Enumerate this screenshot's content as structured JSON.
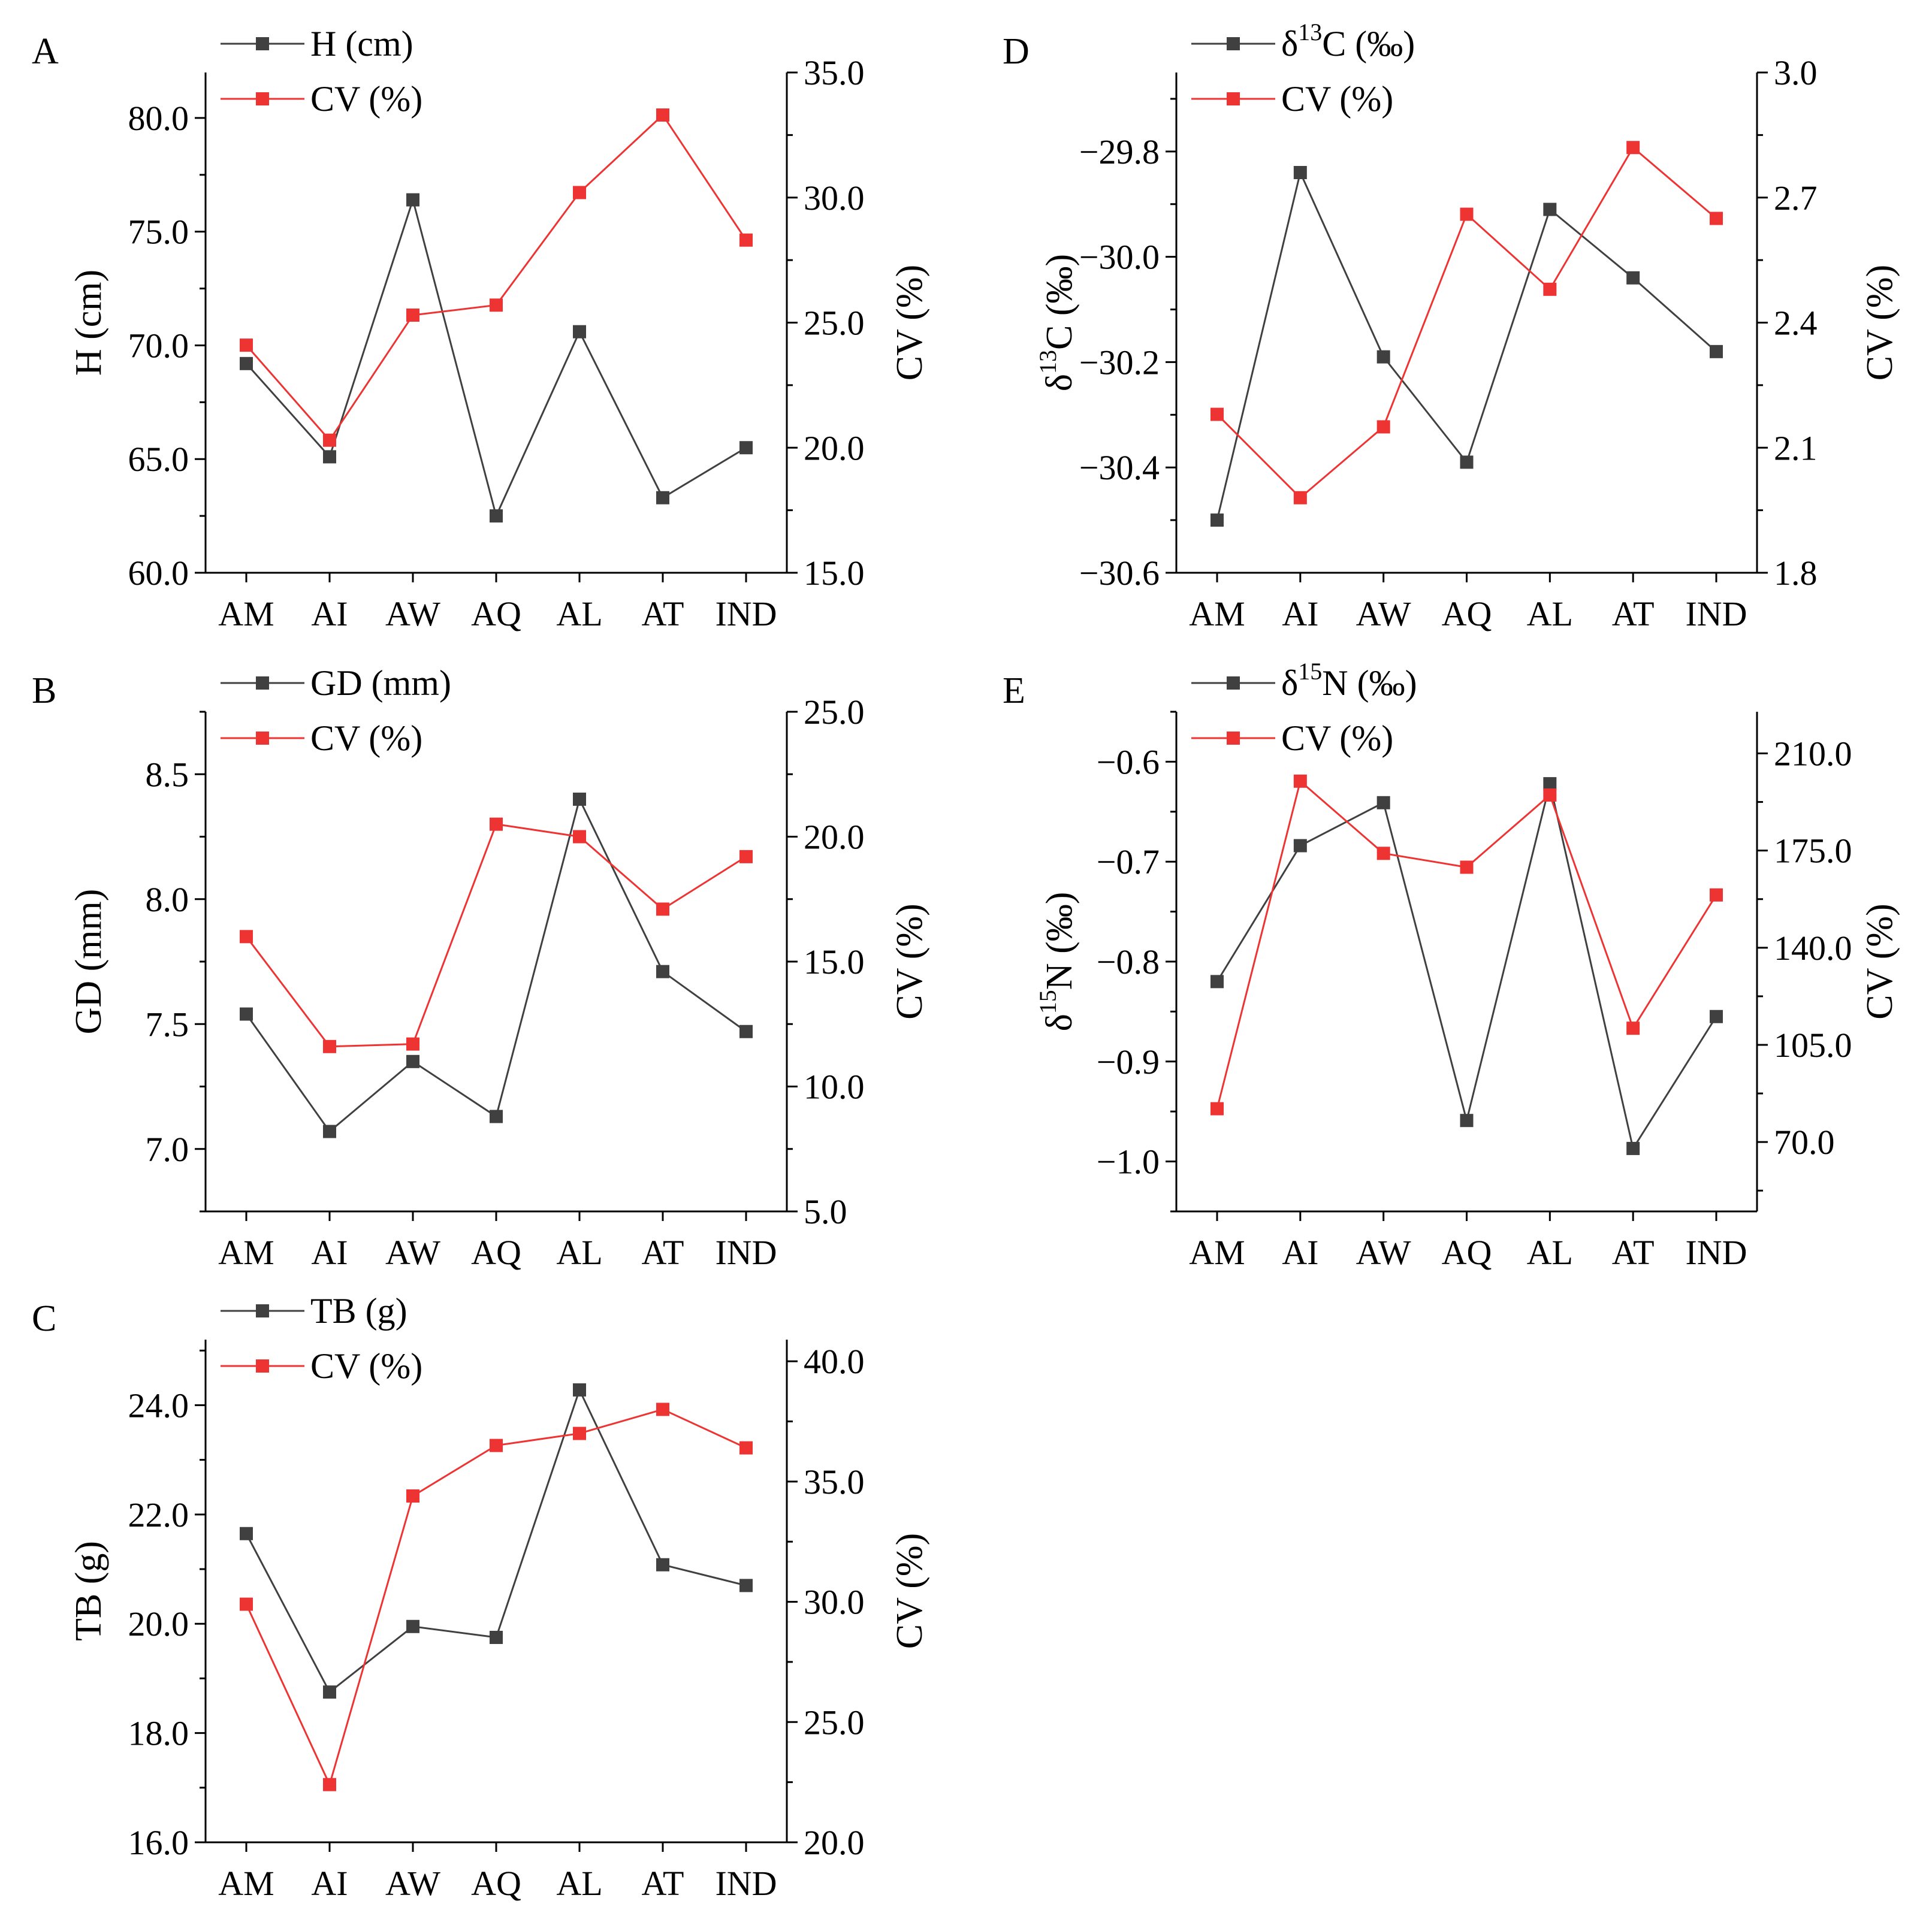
{
  "colors": {
    "primary": "#404040",
    "cv": "#ee3333",
    "axis": "#000000"
  },
  "chart_data": [
    {
      "panel": "A",
      "type": "line",
      "categories": [
        "AM",
        "AI",
        "AW",
        "AQ",
        "AL",
        "AT",
        "IND"
      ],
      "series": [
        {
          "name": "H (cm)",
          "axis": "left",
          "color": "#404040",
          "values": [
            69.2,
            65.1,
            76.4,
            62.5,
            70.6,
            63.3,
            65.5
          ]
        },
        {
          "name": "CV (%)",
          "axis": "right",
          "color": "#ee3333",
          "values": [
            24.1,
            20.3,
            25.3,
            25.7,
            30.2,
            33.3,
            28.3
          ]
        }
      ],
      "left_axis": {
        "label": "H (cm)",
        "range": [
          60,
          82
        ],
        "ticks": [
          60,
          65,
          70,
          75,
          80
        ],
        "tick_labels": [
          "60.0",
          "65.0",
          "70.0",
          "75.0",
          "80.0"
        ]
      },
      "right_axis": {
        "label": "CV (%)",
        "range": [
          15,
          35
        ],
        "ticks": [
          15,
          20,
          25,
          30,
          35
        ],
        "tick_labels": [
          "15.0",
          "20.0",
          "25.0",
          "30.0",
          "35.0"
        ]
      }
    },
    {
      "panel": "B",
      "type": "line",
      "categories": [
        "AM",
        "AI",
        "AW",
        "AQ",
        "AL",
        "AT",
        "IND"
      ],
      "series": [
        {
          "name": "GD (mm)",
          "axis": "left",
          "color": "#404040",
          "values": [
            7.54,
            7.07,
            7.35,
            7.13,
            8.4,
            7.71,
            7.47
          ]
        },
        {
          "name": "CV (%)",
          "axis": "right",
          "color": "#ee3333",
          "values": [
            16.0,
            11.6,
            11.7,
            20.5,
            20.0,
            17.1,
            19.2
          ]
        }
      ],
      "left_axis": {
        "label": "GD (mm)",
        "range": [
          6.75,
          8.75
        ],
        "ticks": [
          7.0,
          7.5,
          8.0,
          8.5
        ],
        "tick_labels": [
          "7.0",
          "7.5",
          "8.0",
          "8.5"
        ]
      },
      "right_axis": {
        "label": "CV (%)",
        "range": [
          5,
          25
        ],
        "ticks": [
          5,
          10,
          15,
          20,
          25
        ],
        "tick_labels": [
          "5.0",
          "10.0",
          "15.0",
          "20.0",
          "25.0"
        ]
      }
    },
    {
      "panel": "C",
      "type": "line",
      "categories": [
        "AM",
        "AI",
        "AW",
        "AQ",
        "AL",
        "AT",
        "IND"
      ],
      "series": [
        {
          "name": "TB (g)",
          "axis": "left",
          "color": "#404040",
          "values": [
            21.65,
            18.75,
            19.95,
            19.75,
            24.28,
            21.08,
            20.7
          ]
        },
        {
          "name": "CV (%)",
          "axis": "right",
          "color": "#ee3333",
          "values": [
            29.9,
            22.4,
            34.4,
            36.5,
            37.0,
            38.0,
            36.4
          ]
        }
      ],
      "left_axis": {
        "label": "TB (g)",
        "range": [
          16,
          25.2
        ],
        "ticks": [
          16,
          18,
          20,
          22,
          24
        ],
        "tick_labels": [
          "16.0",
          "18.0",
          "20.0",
          "22.0",
          "24.0"
        ]
      },
      "right_axis": {
        "label": "CV (%)",
        "range": [
          20,
          40.9
        ],
        "ticks": [
          20,
          25,
          30,
          35,
          40
        ],
        "tick_labels": [
          "20.0",
          "25.0",
          "30.0",
          "35.0",
          "40.0"
        ]
      }
    },
    {
      "panel": "D",
      "type": "line",
      "categories": [
        "AM",
        "AI",
        "AW",
        "AQ",
        "AL",
        "AT",
        "IND"
      ],
      "series": [
        {
          "name": "δ13C (‰)",
          "name_base": "δ",
          "name_sup": "13",
          "name_rest": "C (‰)",
          "axis": "left",
          "color": "#404040",
          "values": [
            -30.5,
            -29.84,
            -30.19,
            -30.39,
            -29.91,
            -30.04,
            -30.18
          ]
        },
        {
          "name": "CV (%)",
          "axis": "right",
          "color": "#ee3333",
          "values": [
            2.18,
            1.98,
            2.15,
            2.66,
            2.48,
            2.82,
            2.65
          ]
        }
      ],
      "left_axis": {
        "label": "δ13C (‰)",
        "label_base": "δ",
        "label_sup": "13",
        "label_rest": "C (‰)",
        "range": [
          -30.6,
          -29.65
        ],
        "ticks": [
          -30.6,
          -30.4,
          -30.2,
          -30.0,
          -29.8
        ],
        "tick_labels": [
          "−30.6",
          "−30.4",
          "−30.2",
          "−30.0",
          "−29.8"
        ]
      },
      "right_axis": {
        "label": "CV (%)",
        "range": [
          1.8,
          3.0
        ],
        "ticks": [
          1.8,
          2.1,
          2.4,
          2.7,
          3.0
        ],
        "tick_labels": [
          "1.8",
          "2.1",
          "2.4",
          "2.7",
          "3.0"
        ]
      }
    },
    {
      "panel": "E",
      "type": "line",
      "categories": [
        "AM",
        "AI",
        "AW",
        "AQ",
        "AL",
        "AT",
        "IND"
      ],
      "series": [
        {
          "name": "δ15N (‰)",
          "name_base": "δ",
          "name_sup": "15",
          "name_rest": "N (‰)",
          "axis": "left",
          "color": "#404040",
          "values": [
            -0.82,
            -0.684,
            -0.641,
            -0.959,
            -0.622,
            -0.987,
            -0.855
          ]
        },
        {
          "name": "CV (%)",
          "axis": "right",
          "color": "#ee3333",
          "values": [
            82.0,
            200.0,
            174.0,
            169.0,
            195.0,
            111.0,
            159.0
          ]
        }
      ],
      "left_axis": {
        "label": "δ15N (‰)",
        "label_base": "δ",
        "label_sup": "15",
        "label_rest": "N (‰)",
        "range": [
          -1.05,
          -0.55
        ],
        "ticks": [
          -1.0,
          -0.9,
          -0.8,
          -0.7,
          -0.6
        ],
        "tick_labels": [
          "−1.0",
          "−0.9",
          "−0.8",
          "−0.7",
          "−0.6"
        ]
      },
      "right_axis": {
        "label": "CV (%)",
        "range": [
          45,
          225
        ],
        "ticks": [
          70,
          105,
          140,
          175,
          210
        ],
        "tick_labels": [
          "70.0",
          "105.0",
          "140.0",
          "175.0",
          "210.0"
        ]
      }
    }
  ]
}
